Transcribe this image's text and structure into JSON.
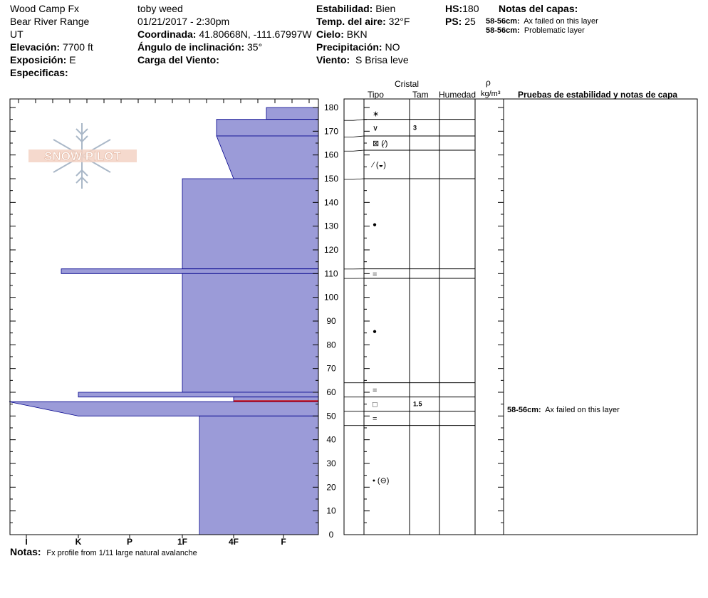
{
  "header": {
    "location": "Wood Camp  Fx",
    "range": "Bear River Range",
    "state": "UT",
    "elevation_label": "Elevación:",
    "elevation_value": "7700 ft",
    "aspect_label": "Exposición:",
    "aspect_value": "E",
    "specifics_label": "Especificas:",
    "observer": "toby weed",
    "datetime": "01/21/2017 - 2:30pm",
    "coord_label": "Coordinada:",
    "coord_value": "41.80668N, -111.67997W",
    "slope_label": "Ángulo de inclinación:",
    "slope_value": "35°",
    "wind_loading_label": "Carga del Viento:",
    "stability_label": "Estabilidad:",
    "stability_value": "Bien",
    "air_temp_label": "Temp. del aire:",
    "air_temp_value": "32°F",
    "sky_label": "Cielo:",
    "sky_value": "BKN",
    "precip_label": "Precipitación:",
    "precip_value": "NO",
    "wind_label": "Viento:",
    "wind_value": "S Brisa leve",
    "hs_label": "HS:",
    "hs_value": "180",
    "ps_label": "PS:",
    "ps_value": "25",
    "layer_notes_title": "Notas del capas:",
    "layer_notes": [
      {
        "range": "58-56cm:",
        "text": "Ax failed on this layer"
      },
      {
        "range": "58-56cm:",
        "text": "Problematic layer"
      }
    ]
  },
  "logo_text": "SNOW PILOT",
  "columns": {
    "crystal": "Cristal",
    "type": "Tipo",
    "size": "Tam",
    "moisture": "Humedad",
    "rho": "ρ",
    "density": "kg/m³",
    "tests": "Pruebas de estabilidad y notas de capa"
  },
  "notes_label": "Notas:",
  "notes_text": "Fx profile from 1/11 large natural avalanche",
  "test_note": {
    "range": "58-56cm:",
    "text": "Ax failed on this layer"
  },
  "colors": {
    "fill": "#9b9bd8",
    "stroke": "#00008b",
    "weak_layer": "#cc0000"
  },
  "chart_data": {
    "type": "area",
    "ylim": [
      0,
      180
    ],
    "hardness_ticks": [
      "I",
      "K",
      "P",
      "1F",
      "4F",
      "F"
    ],
    "depth_ticks": [
      0,
      10,
      20,
      30,
      40,
      50,
      60,
      70,
      80,
      90,
      100,
      110,
      120,
      130,
      140,
      150,
      160,
      170,
      180
    ],
    "hardness_profile": [
      {
        "top": 180,
        "bottom": 175,
        "hardness_top": "F+",
        "hardness_bottom": "F+"
      },
      {
        "top": 175,
        "bottom": 168,
        "hardness_top": "4F+",
        "hardness_bottom": "4F+"
      },
      {
        "top": 168,
        "bottom": 150,
        "hardness_top": "4F+",
        "hardness_bottom": "4F"
      },
      {
        "top": 150,
        "bottom": 112,
        "hardness_top": "1F",
        "hardness_bottom": "1F"
      },
      {
        "top": 112,
        "bottom": 110,
        "hardness_top": "K+",
        "hardness_bottom": "K+"
      },
      {
        "top": 110,
        "bottom": 60,
        "hardness_top": "1F",
        "hardness_bottom": "1F"
      },
      {
        "top": 60,
        "bottom": 58,
        "hardness_top": "K",
        "hardness_bottom": "K"
      },
      {
        "top": 58,
        "bottom": 56,
        "hardness_top": "4F",
        "hardness_bottom": "4F"
      },
      {
        "top": 56,
        "bottom": 50,
        "hardness_top": "I+",
        "hardness_bottom": "K"
      },
      {
        "top": 50,
        "bottom": 0,
        "hardness_top": "1F-",
        "hardness_bottom": "1F-"
      }
    ],
    "layers": [
      {
        "top": 180,
        "bottom": 175,
        "grain": "new-snow",
        "size": ""
      },
      {
        "top": 175,
        "bottom": 168,
        "grain": "surface-hoar",
        "size": "3"
      },
      {
        "top": 168,
        "bottom": 162,
        "grain": "facets-to-decomposing",
        "size": ""
      },
      {
        "top": 162,
        "bottom": 150,
        "grain": "decomposing-to-rounded-facet",
        "size": ""
      },
      {
        "top": 150,
        "bottom": 112,
        "grain": "rounded-grain",
        "size": ""
      },
      {
        "top": 112,
        "bottom": 108,
        "grain": "crust",
        "size": ""
      },
      {
        "top": 108,
        "bottom": 64,
        "grain": "rounded-grain",
        "size": ""
      },
      {
        "top": 64,
        "bottom": 58,
        "grain": "crust",
        "size": ""
      },
      {
        "top": 58,
        "bottom": 52,
        "grain": "facets",
        "size": "1.5"
      },
      {
        "top": 52,
        "bottom": 46,
        "grain": "crust",
        "size": ""
      },
      {
        "top": 46,
        "bottom": 0,
        "grain": "small-rounded-to-rounded-facet",
        "size": ""
      }
    ]
  }
}
